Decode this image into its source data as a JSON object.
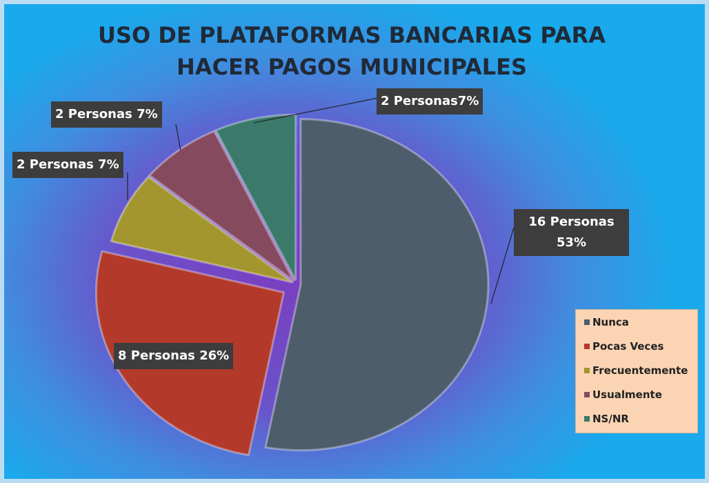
{
  "chart_data": {
    "type": "pie",
    "title": "USO DE PLATAFORMAS BANCARIAS PARA HACER PAGOS MUNICIPALES",
    "categories": [
      "Nunca",
      "Pocas Veces",
      "Frecuentemente",
      "Usualmente",
      "NS/NR"
    ],
    "values": [
      53,
      26,
      7,
      7,
      7
    ],
    "value_labels": [
      "16 Personas 53%",
      "8 Personas 26%",
      "2 Personas 7%",
      "2 Personas 7%",
      "2 Personas7%"
    ],
    "colors": [
      "#4d5d6c",
      "#b33a2b",
      "#a3962e",
      "#864a5f",
      "#3b7a6a"
    ],
    "legend": "right"
  }
}
